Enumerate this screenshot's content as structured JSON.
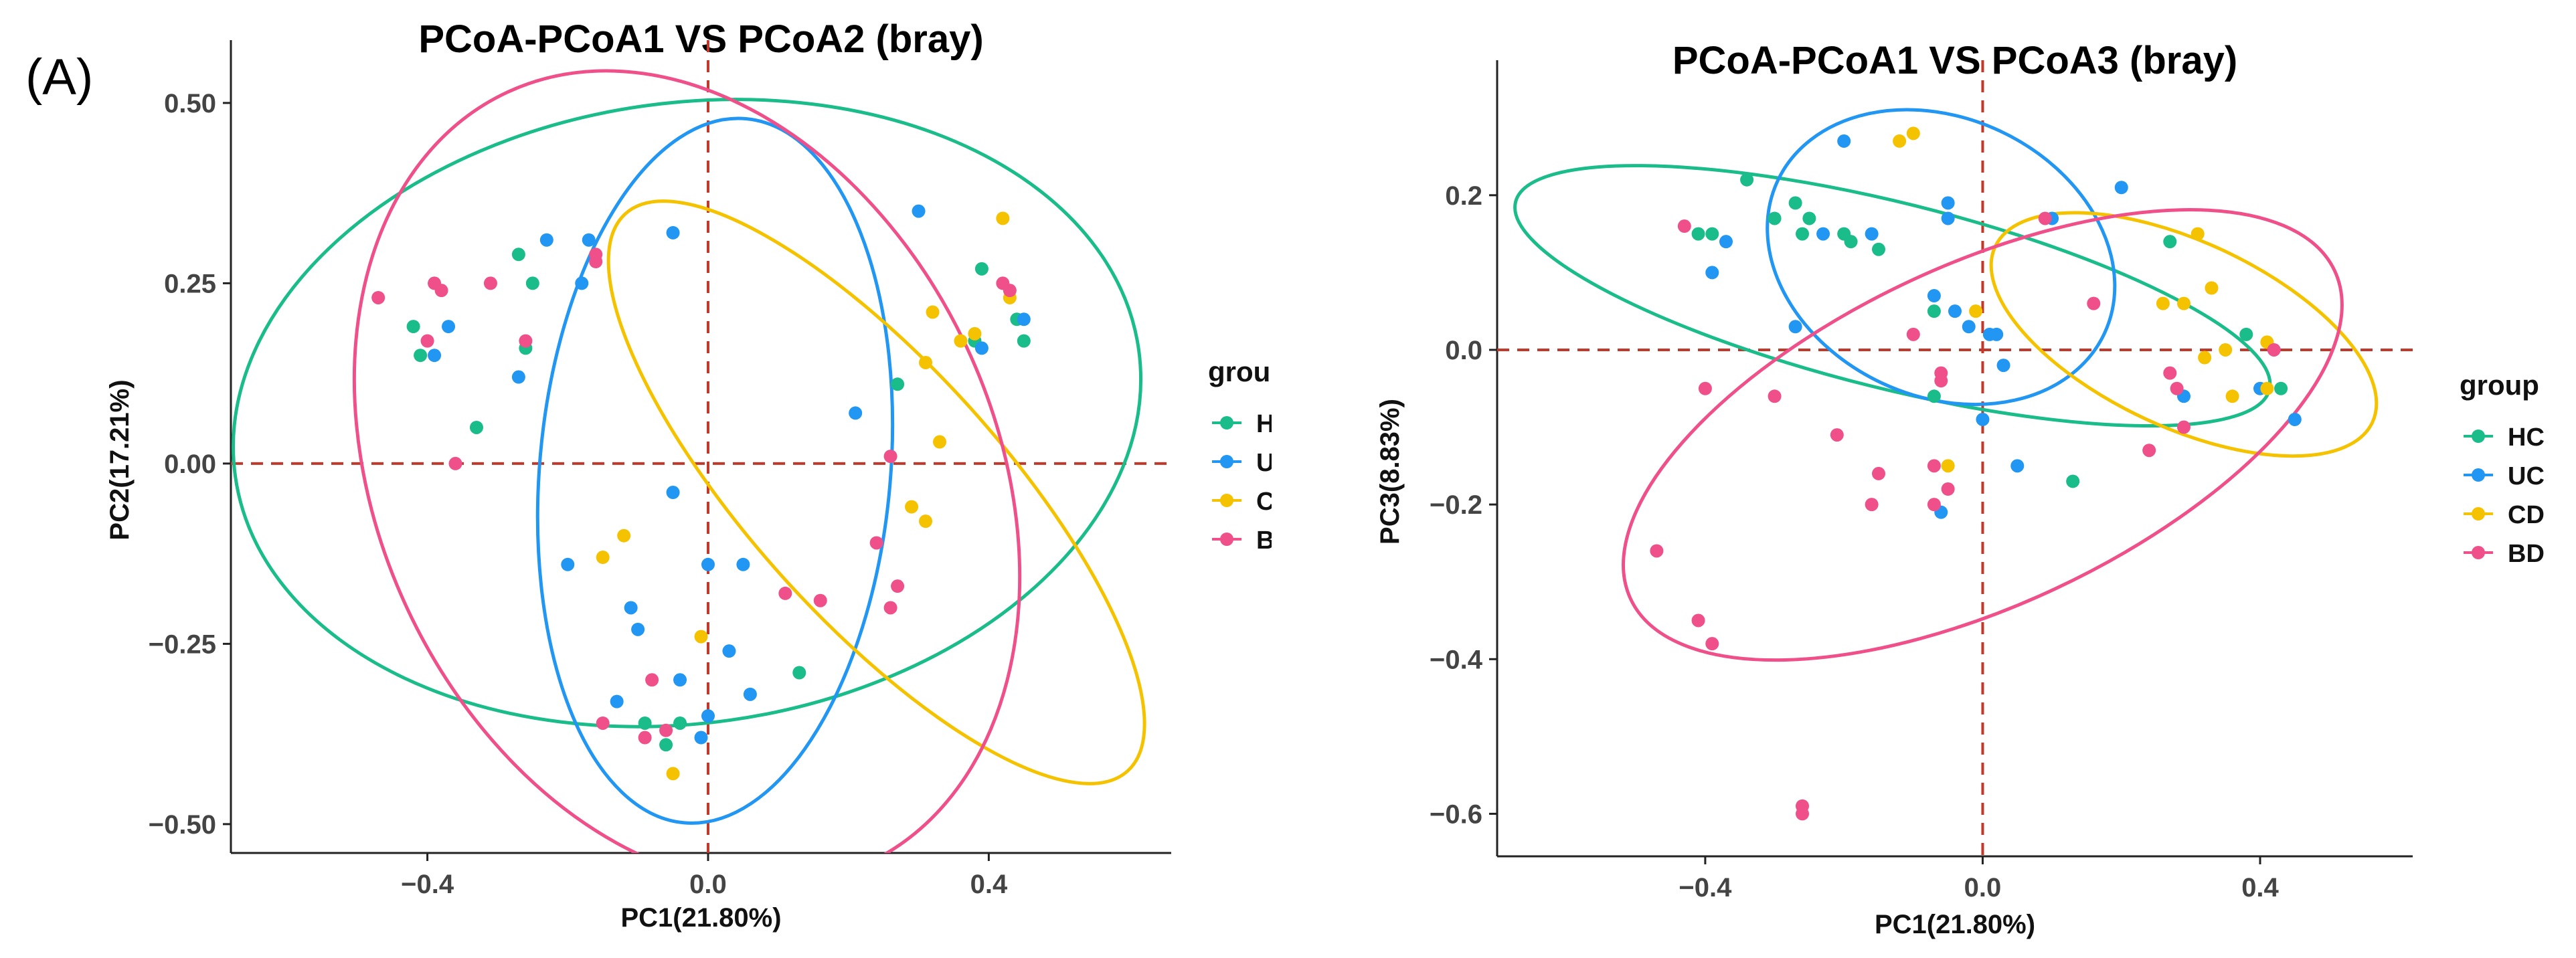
{
  "panel_label": "(A)",
  "chart_data": [
    {
      "type": "scatter",
      "title": "PCoA-PCoA1 VS PCoA2 (bray)",
      "xlabel": "PC1(21.80%)",
      "ylabel": "PC2(17.21%)",
      "xlim": [
        -0.68,
        0.66
      ],
      "ylim": [
        -0.54,
        0.55
      ],
      "xticks": [
        {
          "v": -0.4,
          "label": "−0.4"
        },
        {
          "v": 0.0,
          "label": "0.0"
        },
        {
          "v": 0.4,
          "label": "0.4"
        }
      ],
      "yticks": [
        {
          "v": 0.5,
          "label": "0.50"
        },
        {
          "v": 0.25,
          "label": "0.25"
        },
        {
          "v": 0.0,
          "label": "0.00"
        },
        {
          "v": -0.25,
          "label": "−0.25"
        },
        {
          "v": -0.5,
          "label": "−0.50"
        }
      ],
      "grid": false,
      "reference_lines": {
        "x": 0,
        "y": 0,
        "color": "#c0392b",
        "style": "dashed"
      },
      "legend": {
        "title": "group",
        "position": "right"
      },
      "series": [
        {
          "name": "HC",
          "color": "#1abc8a",
          "points": [
            [
              -0.42,
              0.19
            ],
            [
              -0.41,
              0.15
            ],
            [
              -0.33,
              0.05
            ],
            [
              -0.27,
              0.29
            ],
            [
              -0.26,
              0.16
            ],
            [
              -0.25,
              0.25
            ],
            [
              -0.09,
              -0.36
            ],
            [
              -0.06,
              -0.39
            ],
            [
              -0.04,
              -0.36
            ],
            [
              0.13,
              -0.29
            ],
            [
              0.27,
              0.11
            ],
            [
              0.38,
              0.17
            ],
            [
              0.39,
              0.27
            ],
            [
              0.44,
              0.2
            ],
            [
              0.45,
              0.17
            ]
          ]
        },
        {
          "name": "UC",
          "color": "#2196f3",
          "points": [
            [
              -0.39,
              0.15
            ],
            [
              -0.37,
              0.19
            ],
            [
              -0.27,
              0.12
            ],
            [
              -0.23,
              0.31
            ],
            [
              -0.18,
              0.25
            ],
            [
              -0.17,
              0.31
            ],
            [
              -0.2,
              -0.14
            ],
            [
              -0.11,
              -0.2
            ],
            [
              -0.1,
              -0.23
            ],
            [
              -0.13,
              -0.33
            ],
            [
              -0.05,
              0.32
            ],
            [
              -0.05,
              -0.04
            ],
            [
              -0.04,
              -0.3
            ],
            [
              -0.01,
              -0.38
            ],
            [
              0.0,
              -0.14
            ],
            [
              0.0,
              -0.35
            ],
            [
              0.03,
              -0.26
            ],
            [
              0.05,
              -0.14
            ],
            [
              0.06,
              -0.32
            ],
            [
              0.21,
              0.07
            ],
            [
              0.3,
              0.35
            ],
            [
              0.39,
              0.16
            ],
            [
              0.45,
              0.2
            ]
          ]
        },
        {
          "name": "CD",
          "color": "#f5c200",
          "points": [
            [
              -0.15,
              -0.13
            ],
            [
              -0.12,
              -0.1
            ],
            [
              -0.01,
              -0.24
            ],
            [
              -0.05,
              -0.43
            ],
            [
              0.29,
              -0.06
            ],
            [
              0.31,
              -0.08
            ],
            [
              0.31,
              0.14
            ],
            [
              0.32,
              0.21
            ],
            [
              0.33,
              0.03
            ],
            [
              0.36,
              0.17
            ],
            [
              0.38,
              0.18
            ],
            [
              0.42,
              0.34
            ],
            [
              0.43,
              0.23
            ]
          ]
        },
        {
          "name": "BD",
          "color": "#f0508a",
          "points": [
            [
              -0.47,
              0.23
            ],
            [
              -0.4,
              0.17
            ],
            [
              -0.39,
              0.25
            ],
            [
              -0.38,
              0.24
            ],
            [
              -0.36,
              0.0
            ],
            [
              -0.31,
              0.25
            ],
            [
              -0.26,
              0.17
            ],
            [
              -0.16,
              0.29
            ],
            [
              -0.16,
              0.28
            ],
            [
              -0.15,
              -0.36
            ],
            [
              -0.09,
              -0.38
            ],
            [
              -0.08,
              -0.3
            ],
            [
              -0.06,
              -0.37
            ],
            [
              0.11,
              -0.18
            ],
            [
              0.16,
              -0.19
            ],
            [
              0.24,
              -0.11
            ],
            [
              0.26,
              0.01
            ],
            [
              0.26,
              -0.2
            ],
            [
              0.27,
              -0.17
            ],
            [
              0.42,
              0.25
            ],
            [
              0.43,
              0.24
            ]
          ]
        }
      ],
      "ellipses": [
        {
          "group": "HC",
          "cx": -0.03,
          "cy": 0.07,
          "rx": 0.65,
          "ry": 0.43,
          "angle": 8
        },
        {
          "group": "UC",
          "cx": 0.01,
          "cy": -0.01,
          "rx": 0.25,
          "ry": 0.49,
          "angle": -5
        },
        {
          "group": "CD",
          "cx": 0.24,
          "cy": -0.04,
          "rx": 0.18,
          "ry": 0.52,
          "angle": 42
        },
        {
          "group": "BD",
          "cx": -0.03,
          "cy": -0.02,
          "rx": 0.44,
          "ry": 0.59,
          "angle": 25
        }
      ]
    },
    {
      "type": "scatter",
      "title": "PCoA-PCoA1 VS PCoA3 (bray)",
      "xlabel": "PC1(21.80%)",
      "ylabel": "PC3(8.83%)",
      "xlim": [
        -0.7,
        0.62
      ],
      "ylim": [
        -0.655,
        0.34
      ],
      "xticks": [
        {
          "v": -0.4,
          "label": "−0.4"
        },
        {
          "v": 0.0,
          "label": "0.0"
        },
        {
          "v": 0.4,
          "label": "0.4"
        }
      ],
      "yticks": [
        {
          "v": 0.2,
          "label": "0.2"
        },
        {
          "v": 0.0,
          "label": "0.0"
        },
        {
          "v": -0.2,
          "label": "−0.2"
        },
        {
          "v": -0.4,
          "label": "−0.4"
        },
        {
          "v": -0.6,
          "label": "−0.6"
        }
      ],
      "grid": false,
      "reference_lines": {
        "x": 0,
        "y": 0,
        "color": "#c0392b",
        "style": "dashed"
      },
      "legend": {
        "title": "group",
        "position": "right"
      },
      "series": [
        {
          "name": "HC",
          "color": "#1abc8a",
          "points": [
            [
              -0.41,
              0.15
            ],
            [
              -0.39,
              0.15
            ],
            [
              -0.34,
              0.22
            ],
            [
              -0.3,
              0.17
            ],
            [
              -0.27,
              0.19
            ],
            [
              -0.26,
              0.15
            ],
            [
              -0.25,
              0.17
            ],
            [
              -0.2,
              0.15
            ],
            [
              -0.19,
              0.14
            ],
            [
              -0.15,
              0.13
            ],
            [
              -0.07,
              0.05
            ],
            [
              -0.07,
              -0.06
            ],
            [
              0.13,
              -0.17
            ],
            [
              0.27,
              0.14
            ],
            [
              0.38,
              0.02
            ],
            [
              0.43,
              -0.05
            ]
          ]
        },
        {
          "name": "UC",
          "color": "#2196f3",
          "points": [
            [
              -0.39,
              0.1
            ],
            [
              -0.37,
              0.14
            ],
            [
              -0.27,
              0.03
            ],
            [
              -0.23,
              0.15
            ],
            [
              -0.16,
              0.15
            ],
            [
              -0.2,
              0.27
            ],
            [
              -0.07,
              0.07
            ],
            [
              -0.05,
              0.19
            ],
            [
              -0.05,
              0.17
            ],
            [
              -0.04,
              0.05
            ],
            [
              -0.02,
              0.03
            ],
            [
              0.0,
              -0.09
            ],
            [
              0.01,
              0.02
            ],
            [
              0.02,
              0.02
            ],
            [
              0.03,
              -0.02
            ],
            [
              0.1,
              0.17
            ],
            [
              0.05,
              -0.15
            ],
            [
              0.2,
              0.21
            ],
            [
              0.29,
              -0.06
            ],
            [
              0.4,
              -0.05
            ],
            [
              0.45,
              -0.09
            ],
            [
              -0.06,
              -0.21
            ]
          ]
        },
        {
          "name": "CD",
          "color": "#f5c200",
          "points": [
            [
              -0.12,
              0.27
            ],
            [
              -0.1,
              0.28
            ],
            [
              -0.01,
              0.05
            ],
            [
              -0.05,
              -0.15
            ],
            [
              0.26,
              0.06
            ],
            [
              0.29,
              0.06
            ],
            [
              0.31,
              0.15
            ],
            [
              0.32,
              -0.01
            ],
            [
              0.33,
              0.08
            ],
            [
              0.35,
              0.0
            ],
            [
              0.36,
              -0.06
            ],
            [
              0.41,
              -0.05
            ],
            [
              0.41,
              0.01
            ]
          ]
        },
        {
          "name": "BD",
          "color": "#f0508a",
          "points": [
            [
              -0.43,
              0.16
            ],
            [
              -0.4,
              -0.05
            ],
            [
              -0.3,
              -0.06
            ],
            [
              -0.21,
              -0.11
            ],
            [
              -0.15,
              -0.16
            ],
            [
              -0.07,
              -0.15
            ],
            [
              -0.06,
              -0.03
            ],
            [
              -0.06,
              -0.04
            ],
            [
              -0.07,
              -0.2
            ],
            [
              -0.05,
              -0.18
            ],
            [
              -0.1,
              0.02
            ],
            [
              -0.16,
              -0.2
            ],
            [
              0.09,
              0.17
            ],
            [
              0.16,
              0.06
            ],
            [
              0.27,
              -0.03
            ],
            [
              0.28,
              -0.05
            ],
            [
              0.29,
              -0.1
            ],
            [
              0.24,
              -0.13
            ],
            [
              0.42,
              0.0
            ],
            [
              -0.47,
              -0.26
            ],
            [
              -0.41,
              -0.35
            ],
            [
              -0.39,
              -0.38
            ],
            [
              -0.26,
              -0.59
            ],
            [
              -0.26,
              -0.6
            ]
          ]
        }
      ],
      "ellipses": [
        {
          "group": "HC",
          "cx": -0.13,
          "cy": 0.07,
          "rx": 0.56,
          "ry": 0.12,
          "angle": -14
        },
        {
          "group": "UC",
          "cx": -0.06,
          "cy": 0.12,
          "rx": 0.26,
          "ry": 0.18,
          "angle": -25
        },
        {
          "group": "CD",
          "cx": 0.29,
          "cy": 0.02,
          "rx": 0.3,
          "ry": 0.12,
          "angle": -25
        },
        {
          "group": "BD",
          "cx": 0.0,
          "cy": -0.11,
          "rx": 0.56,
          "ry": 0.22,
          "angle": 25
        }
      ]
    }
  ]
}
